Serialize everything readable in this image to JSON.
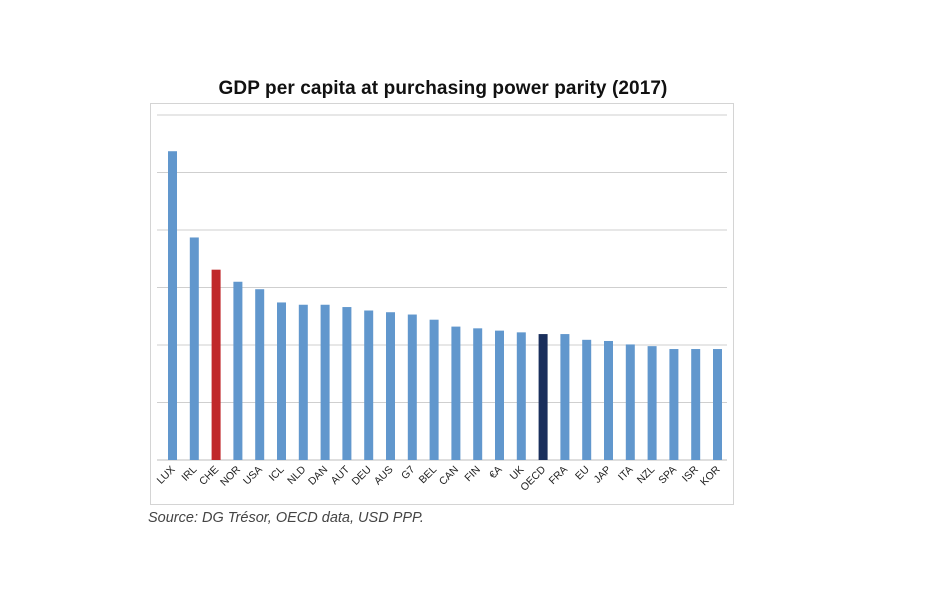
{
  "chart_data": {
    "type": "bar",
    "title": "GDP per capita at purchasing power parity (2017)",
    "source": "Source: DG Trésor, OECD data, USD PPP.",
    "categories": [
      "LUX",
      "IRL",
      "CHE",
      "NOR",
      "USA",
      "ICL",
      "NLD",
      "DAN",
      "AUT",
      "DEU",
      "AUS",
      "G7",
      "BEL",
      "CAN",
      "FIN",
      "€A",
      "UK",
      "OECD",
      "FRA",
      "EU",
      "JAP",
      "ITA",
      "NZL",
      "SPA",
      "ISR",
      "KOR"
    ],
    "values": [
      5.37,
      3.87,
      3.31,
      3.1,
      2.97,
      2.74,
      2.7,
      2.7,
      2.66,
      2.6,
      2.57,
      2.53,
      2.44,
      2.32,
      2.29,
      2.25,
      2.22,
      2.19,
      2.19,
      2.09,
      2.07,
      2.01,
      1.98,
      1.93,
      1.93,
      1.93
    ],
    "ylim": [
      0,
      6
    ],
    "grid": true,
    "y_tick_labels_shown": false,
    "legend": "none",
    "colors": {
      "default": "#6197cd",
      "highlight": "#c0282b",
      "oecd": "#1a2f5c",
      "grid": "#cfcfcf"
    },
    "highlights": {
      "CHE": "highlight",
      "OECD": "oecd"
    }
  }
}
